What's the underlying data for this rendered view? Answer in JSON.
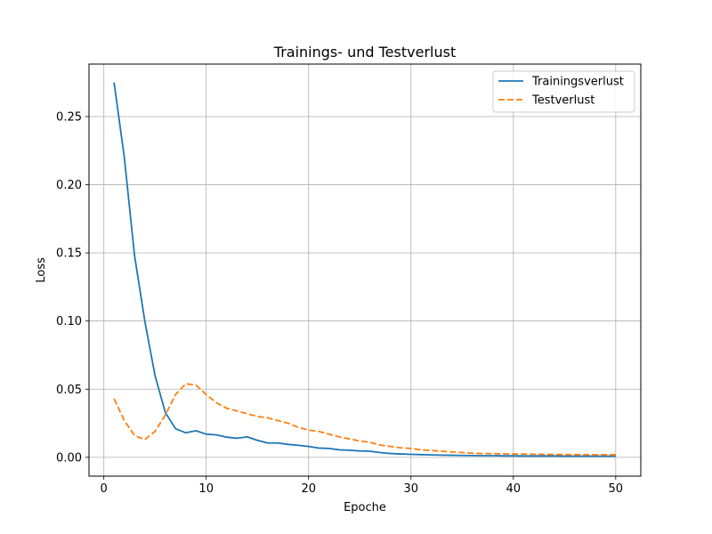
{
  "chart_data": {
    "type": "line",
    "title": "Trainings- und Testverlust",
    "xlabel": "Epoche",
    "ylabel": "Loss",
    "xlim": [
      -1.45,
      52.45
    ],
    "ylim": [
      -0.0138,
      0.2885
    ],
    "xticks": [
      0,
      10,
      20,
      30,
      40,
      50
    ],
    "xtick_labels": [
      "0",
      "10",
      "20",
      "30",
      "40",
      "50"
    ],
    "yticks": [
      0.0,
      0.05,
      0.1,
      0.15,
      0.2,
      0.25
    ],
    "ytick_labels": [
      "0.00",
      "0.05",
      "0.10",
      "0.15",
      "0.20",
      "0.25"
    ],
    "grid": true,
    "legend_position": "top-right",
    "x": [
      1,
      2,
      3,
      4,
      5,
      6,
      7,
      8,
      9,
      10,
      11,
      12,
      13,
      14,
      15,
      16,
      17,
      18,
      19,
      20,
      21,
      22,
      23,
      24,
      25,
      26,
      27,
      28,
      29,
      30,
      31,
      32,
      33,
      34,
      35,
      36,
      37,
      38,
      39,
      40,
      41,
      42,
      43,
      44,
      45,
      46,
      47,
      48,
      49,
      50
    ],
    "series": [
      {
        "name": "Trainingsverlust",
        "color": "#1f77b4",
        "style": "solid",
        "values": [
          0.275,
          0.22,
          0.148,
          0.1,
          0.06,
          0.033,
          0.021,
          0.018,
          0.0195,
          0.017,
          0.0165,
          0.0148,
          0.014,
          0.015,
          0.0125,
          0.0105,
          0.0105,
          0.0095,
          0.0088,
          0.008,
          0.0068,
          0.0065,
          0.0055,
          0.0052,
          0.0047,
          0.0045,
          0.0035,
          0.0028,
          0.0025,
          0.0022,
          0.002,
          0.0018,
          0.0016,
          0.0015,
          0.0014,
          0.0013,
          0.0012,
          0.0012,
          0.0011,
          0.0011,
          0.001,
          0.001,
          0.001,
          0.001,
          0.0009,
          0.0009,
          0.0009,
          0.0009,
          0.0009,
          0.0009
        ]
      },
      {
        "name": "Testverlust",
        "color": "#ff7f0e",
        "style": "dashed",
        "values": [
          0.043,
          0.027,
          0.016,
          0.013,
          0.019,
          0.031,
          0.046,
          0.054,
          0.053,
          0.046,
          0.04,
          0.036,
          0.034,
          0.032,
          0.03,
          0.029,
          0.027,
          0.025,
          0.022,
          0.02,
          0.019,
          0.017,
          0.015,
          0.0135,
          0.012,
          0.011,
          0.009,
          0.008,
          0.007,
          0.0065,
          0.0055,
          0.005,
          0.0045,
          0.004,
          0.0035,
          0.003,
          0.0028,
          0.0027,
          0.0026,
          0.0025,
          0.0024,
          0.0023,
          0.0022,
          0.0021,
          0.002,
          0.002,
          0.002,
          0.0019,
          0.0019,
          0.0019
        ]
      }
    ]
  }
}
